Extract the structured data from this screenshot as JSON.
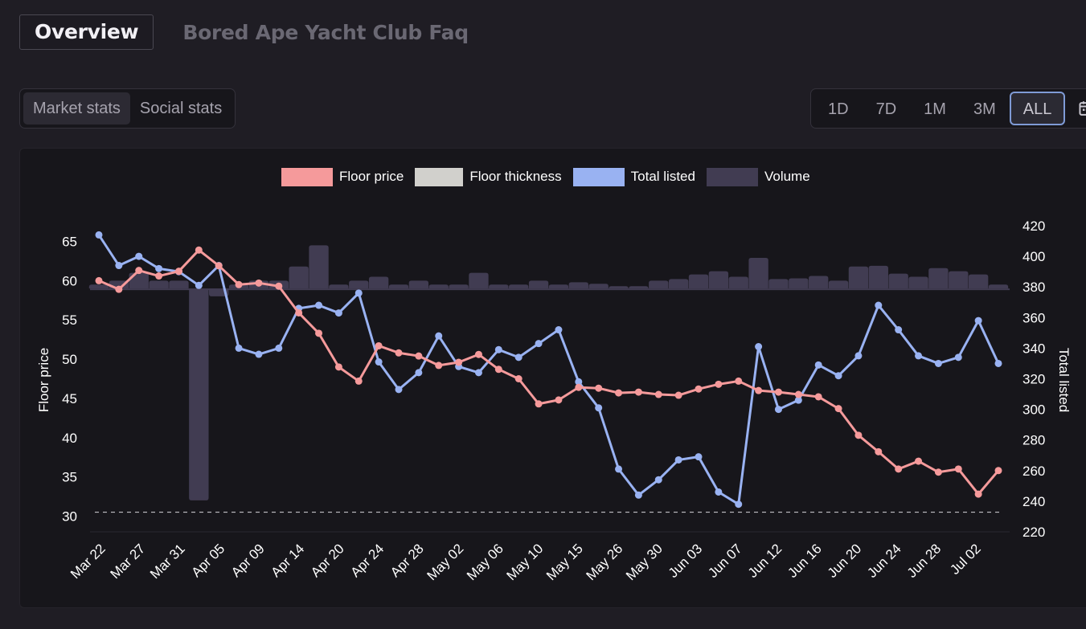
{
  "tabs": {
    "overview": "Overview",
    "faq": "Bored Ape Yacht Club Faq"
  },
  "stat_tabs": {
    "market": "Market stats",
    "social": "Social stats"
  },
  "ranges": [
    "1D",
    "7D",
    "1M",
    "3M",
    "ALL"
  ],
  "selected_range": "ALL",
  "icons": {
    "calendar": "calendar-icon"
  },
  "colors": {
    "floor": "#f59a9b",
    "listed": "#99b2f2",
    "volume": "#413c52",
    "thickness": "#e6e4e0"
  },
  "chart_data": {
    "type": "line",
    "legend": [
      "Floor price",
      "Floor thickness",
      "Total listed",
      "Volume"
    ],
    "legend_position": "top",
    "ylabel": "Floor price",
    "y2label": "Total listed",
    "ylim": [
      28,
      67
    ],
    "yticks": [
      30,
      35,
      40,
      45,
      50,
      55,
      60,
      65
    ],
    "y2lim": [
      220,
      420
    ],
    "y2ticks": [
      220,
      240,
      260,
      280,
      300,
      320,
      340,
      360,
      380,
      400,
      420
    ],
    "xticks": [
      "Mar 22",
      "Mar 27",
      "Mar 31",
      "Apr 05",
      "Apr 09",
      "Apr 14",
      "Apr 20",
      "Apr 24",
      "Apr 28",
      "May 02",
      "May 06",
      "May 10",
      "May 15",
      "May 26",
      "May 30",
      "Jun 03",
      "Jun 07",
      "Jun 12",
      "Jun 16",
      "Jun 20",
      "Jun 24",
      "Jun 28",
      "Jul 02"
    ],
    "floor_thickness": 30.5,
    "series": [
      {
        "name": "Floor price",
        "axis": "left",
        "values": [
          60.0,
          58.9,
          61.3,
          60.6,
          61.2,
          63.9,
          61.9,
          59.5,
          59.7,
          59.3,
          55.9,
          53.3,
          49.0,
          47.2,
          51.7,
          50.8,
          50.4,
          49.2,
          49.6,
          50.6,
          48.7,
          47.5,
          44.3,
          44.8,
          46.4,
          46.3,
          45.7,
          45.8,
          45.5,
          45.4,
          46.2,
          46.8,
          47.2,
          46.0,
          45.8,
          45.5,
          45.2,
          43.7,
          40.3,
          38.2,
          36.0,
          37.0,
          35.6,
          36.0,
          32.8,
          35.8
        ]
      },
      {
        "name": "Total listed",
        "axis": "right",
        "values": [
          414,
          394,
          400,
          392,
          390,
          381,
          394,
          340,
          336,
          340,
          366,
          368,
          363,
          376,
          331,
          313,
          324,
          348,
          328,
          324,
          339,
          334,
          343,
          352,
          318,
          301,
          261,
          244,
          254,
          267,
          269,
          246,
          238,
          341,
          300,
          306,
          329,
          322,
          335,
          368,
          352,
          335,
          330,
          334,
          358,
          330
        ]
      },
      {
        "name": "Volume",
        "axis": "left",
        "type": "bar",
        "values": [
          0.5,
          1.0,
          2.0,
          1.0,
          1.0,
          -27.0,
          -1.0,
          0.5,
          1.0,
          1.0,
          2.8,
          5.5,
          0.5,
          1.0,
          1.5,
          0.5,
          1.0,
          0.5,
          0.5,
          2.0,
          0.5,
          0.5,
          1.0,
          0.5,
          0.8,
          0.6,
          0.3,
          0.3,
          1.0,
          1.2,
          1.8,
          2.2,
          1.5,
          3.9,
          1.2,
          1.3,
          1.6,
          1.0,
          2.8,
          2.9,
          1.9,
          1.5,
          2.6,
          2.2,
          1.8,
          0.5
        ]
      }
    ]
  }
}
